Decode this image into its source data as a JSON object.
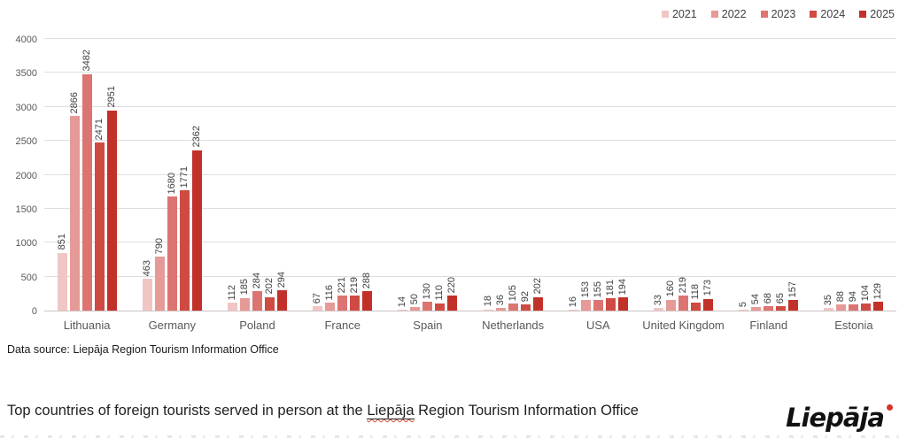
{
  "chart_data": {
    "type": "bar",
    "title": "",
    "categories": [
      "Lithuania",
      "Germany",
      "Poland",
      "France",
      "Spain",
      "Netherlands",
      "USA",
      "United Kingdom",
      "Finland",
      "Estonia"
    ],
    "series": [
      {
        "name": "2021",
        "color": "#f0c6c5",
        "values": [
          851,
          463,
          112,
          67,
          14,
          18,
          16,
          33,
          5,
          35
        ]
      },
      {
        "name": "2022",
        "color": "#e59a98",
        "values": [
          2866,
          790,
          185,
          116,
          50,
          36,
          153,
          160,
          54,
          88
        ]
      },
      {
        "name": "2023",
        "color": "#dc7572",
        "values": [
          3482,
          1680,
          284,
          221,
          130,
          105,
          155,
          219,
          68,
          94
        ]
      },
      {
        "name": "2024",
        "color": "#cf4a43",
        "values": [
          2471,
          1771,
          202,
          219,
          110,
          92,
          181,
          118,
          65,
          104
        ]
      },
      {
        "name": "2025",
        "color": "#c23129",
        "values": [
          2951,
          2362,
          294,
          288,
          220,
          202,
          194,
          173,
          157,
          129
        ]
      }
    ],
    "ylim": [
      0,
      4000
    ],
    "yticks": [
      0,
      500,
      1000,
      1500,
      2000,
      2500,
      3000,
      3500,
      4000
    ],
    "legend_position": "top-right",
    "grid": "horizontal",
    "value_labels": "rotated-90-above-bars"
  },
  "footer": {
    "data_source": "Data source: Liepāja Region Tourism Information Office"
  },
  "caption": {
    "prefix": "Top countries of foreign tourists served in person at the ",
    "highlight": "Liepāja",
    "suffix": " Region Tourism Information Office"
  },
  "logo": {
    "text": "Liepāja"
  }
}
